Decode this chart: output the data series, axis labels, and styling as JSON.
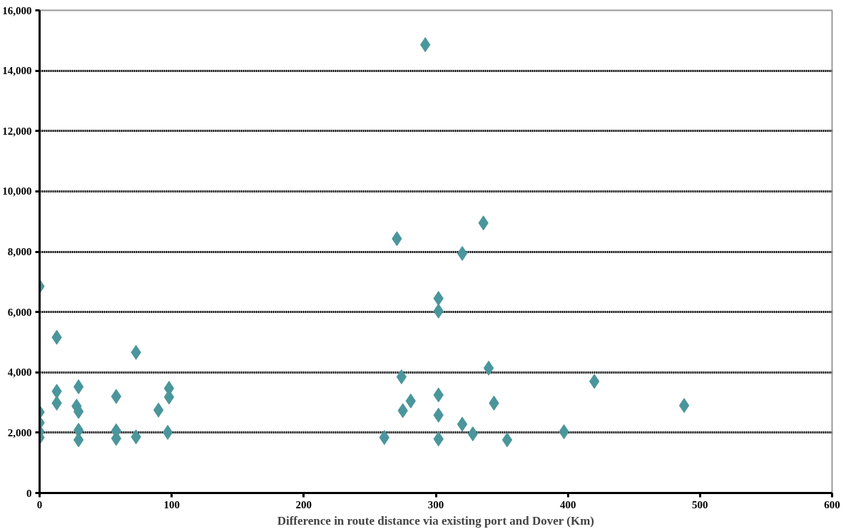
{
  "chart_data": {
    "type": "scatter",
    "xlabel": "Difference in route distance via existing port and Dover (Km)",
    "marker": "diamond",
    "grid": "y",
    "xlim": [
      0,
      600
    ],
    "ylim": [
      0,
      16000
    ],
    "xticks": [
      0,
      100,
      200,
      300,
      400,
      500,
      600
    ],
    "yticks": [
      {
        "value": 0,
        "label": "0"
      },
      {
        "value": 2000,
        "label": "2,000"
      },
      {
        "value": 4000,
        "label": "4,000"
      },
      {
        "value": 6000,
        "label": "6,000"
      },
      {
        "value": 8000,
        "label": "8,000"
      },
      {
        "value": 10000,
        "label": "10,000"
      },
      {
        "value": 12000,
        "label": "12,000"
      },
      {
        "value": 14000,
        "label": "14,000"
      },
      {
        "value": 16000,
        "label": "16,000"
      }
    ],
    "series": [
      {
        "color": "#4a969c",
        "x": [
          0,
          13,
          73,
          13,
          29.5,
          13,
          28,
          29.5,
          0,
          0,
          0,
          0,
          29.5,
          29.5,
          58,
          58,
          58,
          73,
          90,
          97,
          98,
          98,
          292,
          270.5,
          336,
          320,
          302,
          302,
          274,
          340,
          281,
          275,
          302,
          302,
          320,
          328,
          261,
          302,
          354,
          344,
          397,
          420,
          488
        ],
        "values": [
          6850,
          5160,
          4660,
          3370,
          3520,
          2980,
          2880,
          2700,
          2680,
          2330,
          2030,
          1840,
          2080,
          1760,
          2060,
          1810,
          3200,
          1860,
          2750,
          2010,
          3470,
          3180,
          14860,
          8430,
          8950,
          7940,
          6450,
          6030,
          3850,
          4140,
          3050,
          2730,
          3250,
          2580,
          2280,
          1960,
          1840,
          1790,
          1760,
          2980,
          2030,
          3700,
          2900
        ]
      }
    ]
  }
}
